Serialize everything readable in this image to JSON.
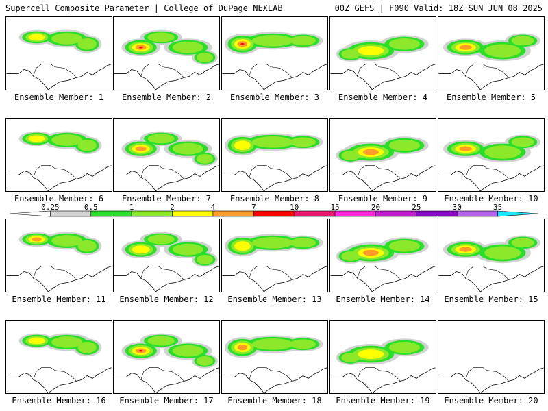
{
  "header": {
    "title_left": "Supercell Composite Parameter | College of DuPage NEXLAB",
    "title_right": "00Z GEFS | F090 Valid: 18Z SUN JUN 08 2025"
  },
  "colorbar": {
    "ticks": [
      "0.25",
      "0.5",
      "1",
      "2",
      "4",
      "7",
      "10",
      "15",
      "20",
      "25",
      "30",
      "35"
    ],
    "colors": [
      "#ffffff",
      "#d2d2d2",
      "#2adf2a",
      "#8be82a",
      "#ffff00",
      "#ff9c2a",
      "#ff0000",
      "#e6196e",
      "#ff2adf",
      "#c31ad2",
      "#8a06c8",
      "#b462f0",
      "#1ee8ff"
    ]
  },
  "map_colors": {
    "light_gray": "#d2d2d2",
    "green": "#2adf2a",
    "light_green": "#8be82a",
    "yellow": "#ffff00",
    "orange": "#ff9c2a",
    "red": "#ff0000"
  },
  "panels": [
    {
      "label": "Ensemble Member: 1",
      "intensity": 2
    },
    {
      "label": "Ensemble Member: 2",
      "intensity": 4
    },
    {
      "label": "Ensemble Member: 3",
      "intensity": 4
    },
    {
      "label": "Ensemble Member: 4",
      "intensity": 2
    },
    {
      "label": "Ensemble Member: 5",
      "intensity": 3
    },
    {
      "label": "Ensemble Member: 6",
      "intensity": 2
    },
    {
      "label": "Ensemble Member: 7",
      "intensity": 3
    },
    {
      "label": "Ensemble Member: 8",
      "intensity": 2
    },
    {
      "label": "Ensemble Member: 9",
      "intensity": 3
    },
    {
      "label": "Ensemble Member: 10",
      "intensity": 3
    },
    {
      "label": "Ensemble Member: 11",
      "intensity": 3
    },
    {
      "label": "Ensemble Member: 12",
      "intensity": 2
    },
    {
      "label": "Ensemble Member: 13",
      "intensity": 2
    },
    {
      "label": "Ensemble Member: 14",
      "intensity": 3
    },
    {
      "label": "Ensemble Member: 15",
      "intensity": 3
    },
    {
      "label": "Ensemble Member: 16",
      "intensity": 2
    },
    {
      "label": "Ensemble Member: 17",
      "intensity": 4
    },
    {
      "label": "Ensemble Member: 18",
      "intensity": 3
    },
    {
      "label": "Ensemble Member: 19",
      "intensity": 2
    },
    {
      "label": "Ensemble Member: 20",
      "intensity": 0
    }
  ]
}
